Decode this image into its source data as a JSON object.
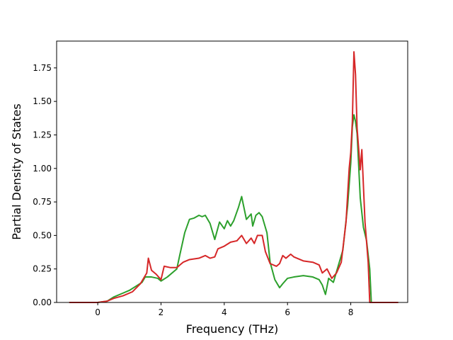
{
  "chart_data": {
    "type": "line",
    "title": "",
    "xlabel": "Frequency (THz)",
    "ylabel": "Partial Density of States",
    "xlim": [
      -1.3,
      9.8
    ],
    "ylim": [
      0,
      1.95
    ],
    "xticks": [
      0,
      2,
      4,
      6,
      8
    ],
    "yticks": [
      0.0,
      0.25,
      0.5,
      0.75,
      1.0,
      1.25,
      1.5,
      1.75
    ],
    "xtick_labels": [
      "0",
      "2",
      "4",
      "6",
      "8"
    ],
    "ytick_labels": [
      "0.00",
      "0.25",
      "0.50",
      "0.75",
      "1.00",
      "1.25",
      "1.50",
      "1.75"
    ],
    "grid": false,
    "legend": "none",
    "series": [
      {
        "color": "#2ca02c",
        "points": [
          [
            -0.9,
            0.0
          ],
          [
            0.0,
            0.0
          ],
          [
            0.3,
            0.01
          ],
          [
            0.5,
            0.04
          ],
          [
            0.8,
            0.07
          ],
          [
            1.0,
            0.09
          ],
          [
            1.2,
            0.12
          ],
          [
            1.4,
            0.15
          ],
          [
            1.5,
            0.19
          ],
          [
            1.7,
            0.19
          ],
          [
            1.9,
            0.18
          ],
          [
            2.0,
            0.16
          ],
          [
            2.2,
            0.19
          ],
          [
            2.5,
            0.25
          ],
          [
            2.6,
            0.36
          ],
          [
            2.75,
            0.52
          ],
          [
            2.9,
            0.62
          ],
          [
            3.05,
            0.63
          ],
          [
            3.2,
            0.65
          ],
          [
            3.3,
            0.64
          ],
          [
            3.4,
            0.65
          ],
          [
            3.55,
            0.59
          ],
          [
            3.7,
            0.47
          ],
          [
            3.85,
            0.6
          ],
          [
            4.0,
            0.55
          ],
          [
            4.1,
            0.61
          ],
          [
            4.2,
            0.57
          ],
          [
            4.3,
            0.61
          ],
          [
            4.45,
            0.71
          ],
          [
            4.55,
            0.79
          ],
          [
            4.7,
            0.62
          ],
          [
            4.85,
            0.66
          ],
          [
            4.9,
            0.57
          ],
          [
            5.0,
            0.65
          ],
          [
            5.1,
            0.67
          ],
          [
            5.2,
            0.64
          ],
          [
            5.35,
            0.52
          ],
          [
            5.45,
            0.3
          ],
          [
            5.6,
            0.17
          ],
          [
            5.75,
            0.11
          ],
          [
            5.85,
            0.14
          ],
          [
            6.0,
            0.18
          ],
          [
            6.2,
            0.19
          ],
          [
            6.5,
            0.2
          ],
          [
            6.8,
            0.19
          ],
          [
            7.0,
            0.17
          ],
          [
            7.1,
            0.13
          ],
          [
            7.2,
            0.06
          ],
          [
            7.3,
            0.18
          ],
          [
            7.45,
            0.15
          ],
          [
            7.6,
            0.27
          ],
          [
            7.75,
            0.39
          ],
          [
            7.9,
            0.72
          ],
          [
            8.0,
            1.04
          ],
          [
            8.05,
            1.31
          ],
          [
            8.1,
            1.4
          ],
          [
            8.15,
            1.35
          ],
          [
            8.2,
            1.26
          ],
          [
            8.3,
            0.78
          ],
          [
            8.4,
            0.56
          ],
          [
            8.5,
            0.46
          ],
          [
            8.6,
            0.25
          ],
          [
            8.65,
            0.0
          ],
          [
            9.5,
            0.0
          ]
        ]
      },
      {
        "color": "#d62728",
        "points": [
          [
            -0.9,
            0.0
          ],
          [
            0.0,
            0.0
          ],
          [
            0.3,
            0.01
          ],
          [
            0.5,
            0.03
          ],
          [
            0.8,
            0.05
          ],
          [
            1.1,
            0.08
          ],
          [
            1.35,
            0.14
          ],
          [
            1.55,
            0.22
          ],
          [
            1.6,
            0.33
          ],
          [
            1.7,
            0.24
          ],
          [
            1.85,
            0.21
          ],
          [
            2.0,
            0.17
          ],
          [
            2.1,
            0.27
          ],
          [
            2.3,
            0.26
          ],
          [
            2.5,
            0.26
          ],
          [
            2.7,
            0.3
          ],
          [
            2.9,
            0.32
          ],
          [
            3.2,
            0.33
          ],
          [
            3.4,
            0.35
          ],
          [
            3.55,
            0.33
          ],
          [
            3.7,
            0.34
          ],
          [
            3.8,
            0.4
          ],
          [
            4.0,
            0.42
          ],
          [
            4.2,
            0.45
          ],
          [
            4.4,
            0.46
          ],
          [
            4.55,
            0.5
          ],
          [
            4.7,
            0.44
          ],
          [
            4.85,
            0.48
          ],
          [
            4.95,
            0.44
          ],
          [
            5.05,
            0.5
          ],
          [
            5.2,
            0.5
          ],
          [
            5.3,
            0.38
          ],
          [
            5.45,
            0.29
          ],
          [
            5.65,
            0.27
          ],
          [
            5.75,
            0.29
          ],
          [
            5.85,
            0.35
          ],
          [
            5.95,
            0.33
          ],
          [
            6.1,
            0.36
          ],
          [
            6.2,
            0.34
          ],
          [
            6.5,
            0.31
          ],
          [
            6.8,
            0.3
          ],
          [
            7.0,
            0.28
          ],
          [
            7.1,
            0.22
          ],
          [
            7.25,
            0.25
          ],
          [
            7.4,
            0.18
          ],
          [
            7.55,
            0.22
          ],
          [
            7.7,
            0.3
          ],
          [
            7.85,
            0.6
          ],
          [
            7.95,
            1.0
          ],
          [
            8.0,
            1.12
          ],
          [
            8.05,
            1.35
          ],
          [
            8.1,
            1.87
          ],
          [
            8.15,
            1.7
          ],
          [
            8.2,
            1.3
          ],
          [
            8.3,
            0.99
          ],
          [
            8.35,
            1.14
          ],
          [
            8.45,
            0.6
          ],
          [
            8.55,
            0.3
          ],
          [
            8.6,
            0.0
          ],
          [
            9.5,
            0.0
          ]
        ]
      }
    ]
  }
}
